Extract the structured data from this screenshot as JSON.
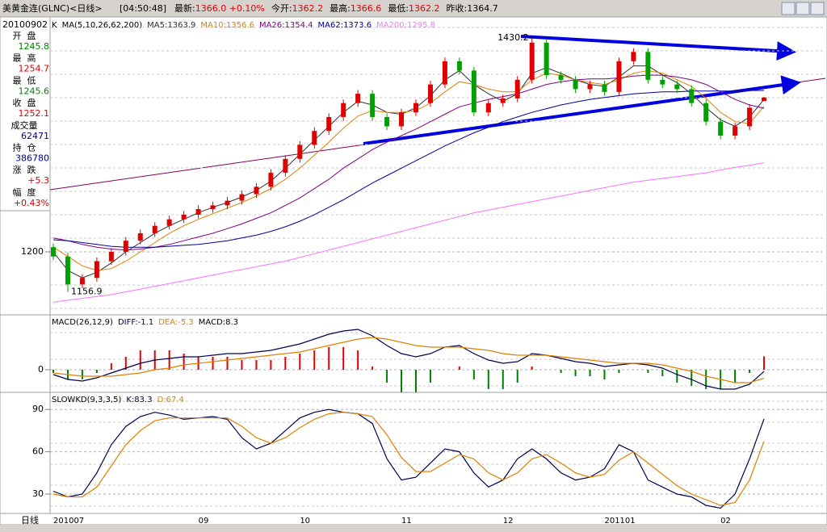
{
  "header": {
    "title": "美黄金连(GLNC)<日线>",
    "time": "[04:50:48]",
    "quotes": [
      {
        "label": "最新:",
        "value": "1366.0 +0.10%",
        "color": "#e00000"
      },
      {
        "label": "今开:",
        "value": "1362.2",
        "color": "#e00000"
      },
      {
        "label": "最高:",
        "value": "1366.6",
        "color": "#e00000"
      },
      {
        "label": "最低:",
        "value": "1362.2",
        "color": "#e00000"
      },
      {
        "label": "昨收:",
        "value": "1364.7",
        "color": "#000000"
      }
    ]
  },
  "info_panel": {
    "date": "20100902",
    "rows": [
      {
        "label": "开  盘",
        "value": "1245.8",
        "color": "#008000"
      },
      {
        "label": "最  高",
        "value": "1254.7",
        "color": "#e00000"
      },
      {
        "label": "最  低",
        "value": "1245.6",
        "color": "#008000"
      },
      {
        "label": "收  盘",
        "value": "1252.1",
        "color": "#e00000"
      },
      {
        "label": "成交量",
        "value": "62471",
        "color": "#000080"
      },
      {
        "label": "持  仓",
        "value": "386780",
        "color": "#000080"
      },
      {
        "label": "涨  跌",
        "value": "+5.3",
        "color": "#e00000"
      },
      {
        "label": "幅  度",
        "value": "+0.43%",
        "color": "#e00000"
      }
    ]
  },
  "chart_data": [
    {
      "type": "candlestick",
      "label": "K",
      "ma_label": "MA(5,10,26,62,200)",
      "period_label": "日线",
      "up_color": "#e00000",
      "down_color": "#00a000",
      "categories": [
        "201007",
        null,
        null,
        null,
        null,
        null,
        null,
        null,
        null,
        null,
        "09",
        null,
        null,
        null,
        null,
        null,
        null,
        "10",
        null,
        null,
        null,
        null,
        null,
        null,
        "11",
        null,
        null,
        null,
        null,
        null,
        null,
        "12",
        null,
        null,
        null,
        null,
        null,
        null,
        "201101",
        null,
        null,
        null,
        null,
        null,
        null,
        null,
        "02",
        null,
        null,
        null
      ],
      "open": [
        1205,
        1195,
        1165,
        1172,
        1190,
        1200,
        1212,
        1220,
        1228,
        1235,
        1240,
        1246,
        1250,
        1255,
        1262,
        1270,
        1285,
        1300,
        1315,
        1330,
        1345,
        1360,
        1370,
        1345,
        1335,
        1350,
        1360,
        1380,
        1405,
        1395,
        1350,
        1360,
        1365,
        1385,
        1425,
        1390,
        1385,
        1375,
        1380,
        1372,
        1405,
        1415,
        1385,
        1380,
        1375,
        1360,
        1340,
        1325,
        1335,
        1362.2
      ],
      "high": [
        1209,
        1199,
        1176,
        1194,
        1204,
        1216,
        1224,
        1232,
        1239,
        1244,
        1250,
        1254,
        1259,
        1266,
        1274,
        1289,
        1304,
        1319,
        1334,
        1349,
        1364,
        1374,
        1374,
        1349,
        1354,
        1364,
        1384,
        1409,
        1409,
        1399,
        1364,
        1369,
        1389,
        1430.2,
        1429,
        1394,
        1389,
        1384,
        1384,
        1409,
        1419,
        1419,
        1389,
        1384,
        1379,
        1364,
        1344,
        1339,
        1359,
        1366.6
      ],
      "low": [
        1191,
        1156.9,
        1161,
        1168,
        1186,
        1196,
        1208,
        1216,
        1224,
        1231,
        1236,
        1242,
        1246,
        1251,
        1258,
        1266,
        1281,
        1296,
        1311,
        1326,
        1341,
        1356,
        1341,
        1331,
        1331,
        1346,
        1356,
        1376,
        1391,
        1346,
        1346,
        1356,
        1361,
        1381,
        1386,
        1381,
        1371,
        1371,
        1368,
        1368,
        1401,
        1381,
        1376,
        1371,
        1356,
        1336,
        1321,
        1321,
        1331,
        1362.2
      ],
      "close": [
        1195,
        1165,
        1172,
        1190,
        1200,
        1212,
        1220,
        1228,
        1235,
        1240,
        1246,
        1250,
        1255,
        1262,
        1270,
        1285,
        1300,
        1315,
        1330,
        1345,
        1360,
        1370,
        1345,
        1335,
        1350,
        1360,
        1380,
        1405,
        1395,
        1350,
        1360,
        1365,
        1385,
        1425,
        1390,
        1385,
        1375,
        1380,
        1372,
        1405,
        1415,
        1385,
        1380,
        1375,
        1360,
        1340,
        1325,
        1335,
        1355,
        1366
      ],
      "series": [
        {
          "name": "MA5:1363.9",
          "color": "#303030",
          "values": [
            1200,
            1180,
            1172,
            1178,
            1188,
            1200,
            1210,
            1220,
            1228,
            1235,
            1242,
            1248,
            1253,
            1259,
            1266,
            1276,
            1290,
            1305,
            1320,
            1335,
            1350,
            1362,
            1358,
            1350,
            1348,
            1355,
            1368,
            1385,
            1395,
            1380,
            1370,
            1362,
            1370,
            1392,
            1398,
            1392,
            1385,
            1380,
            1378,
            1388,
            1400,
            1400,
            1390,
            1382,
            1370,
            1355,
            1342,
            1335,
            1345,
            1363.9
          ]
        },
        {
          "name": "MA10:1356.6",
          "color": "#e08000",
          "values": [
            1205,
            1195,
            1185,
            1180,
            1182,
            1190,
            1200,
            1210,
            1220,
            1228,
            1235,
            1241,
            1247,
            1253,
            1260,
            1268,
            1278,
            1290,
            1304,
            1318,
            1333,
            1346,
            1352,
            1350,
            1350,
            1352,
            1360,
            1372,
            1383,
            1380,
            1375,
            1372,
            1372,
            1385,
            1392,
            1390,
            1385,
            1382,
            1380,
            1385,
            1392,
            1395,
            1392,
            1385,
            1378,
            1365,
            1350,
            1340,
            1338,
            1356.6
          ]
        },
        {
          "name": "MA26:1354.4",
          "color": "#800080",
          "values": [
            1215,
            1212,
            1208,
            1205,
            1203,
            1202,
            1203,
            1205,
            1208,
            1212,
            1216,
            1220,
            1225,
            1230,
            1236,
            1242,
            1250,
            1258,
            1268,
            1278,
            1290,
            1300,
            1310,
            1318,
            1325,
            1332,
            1340,
            1348,
            1356,
            1360,
            1364,
            1367,
            1370,
            1375,
            1380,
            1383,
            1385,
            1386,
            1386,
            1387,
            1389,
            1390,
            1390,
            1388,
            1385,
            1380,
            1372,
            1364,
            1358,
            1354.4
          ]
        },
        {
          "name": "MA62:1373.6",
          "color": "#0000a0",
          "values": [
            1213,
            1212,
            1210,
            1208,
            1206,
            1205,
            1205,
            1205,
            1206,
            1207,
            1208,
            1210,
            1212,
            1215,
            1218,
            1222,
            1227,
            1233,
            1240,
            1248,
            1256,
            1265,
            1274,
            1282,
            1290,
            1298,
            1306,
            1314,
            1321,
            1328,
            1334,
            1340,
            1345,
            1350,
            1354,
            1358,
            1361,
            1364,
            1366,
            1368,
            1370,
            1371,
            1372,
            1372,
            1373,
            1373,
            1373,
            1373,
            1373.5,
            1373.6
          ]
        },
        {
          "name": "MA200:1295.8",
          "color": "#ff70ff",
          "values": [
            1146,
            1148,
            1150,
            1152,
            1154,
            1157,
            1160,
            1163,
            1166,
            1169,
            1172,
            1175,
            1178,
            1181,
            1184,
            1187,
            1190,
            1194,
            1198,
            1202,
            1206,
            1210,
            1214,
            1218,
            1222,
            1226,
            1230,
            1234,
            1238,
            1242,
            1245,
            1248,
            1251,
            1254,
            1257,
            1260,
            1263,
            1266,
            1269,
            1272,
            1275,
            1277,
            1279,
            1281,
            1283,
            1285,
            1288,
            1291,
            1293,
            1295.8
          ]
        }
      ],
      "ylim": [
        1134,
        1450
      ],
      "yticks": [
        1200
      ]
    },
    {
      "type": "macd",
      "label": "MACD(26,12,9)",
      "up_color": "#e00000",
      "down_color": "#008000",
      "series": [
        {
          "name": "DIFF:-1.1",
          "color": "#000050",
          "values": [
            -3,
            -6,
            -7,
            -5,
            -2,
            1,
            4,
            6,
            7,
            8,
            8,
            9,
            10,
            10,
            11,
            12,
            14,
            16,
            19,
            22,
            24,
            25,
            21,
            15,
            10,
            8,
            10,
            14,
            15,
            10,
            6,
            4,
            5,
            10,
            9,
            7,
            5,
            4,
            2,
            3,
            4,
            3,
            1,
            -3,
            -6,
            -10,
            -12,
            -12,
            -9,
            -1.1
          ]
        },
        {
          "name": "DEA:-5.3",
          "color": "#e08000",
          "values": [
            -2,
            -3,
            -4,
            -4,
            -4,
            -3,
            -2,
            0,
            1,
            3,
            4,
            5,
            6,
            7,
            8,
            9,
            10,
            11,
            13,
            15,
            17,
            19,
            20,
            19,
            17,
            15,
            14,
            14,
            14,
            13,
            12,
            10,
            9,
            9,
            9,
            8,
            7,
            6,
            5,
            4,
            4,
            4,
            3,
            1,
            -1,
            -4,
            -6,
            -8,
            -8,
            -5.3
          ]
        }
      ],
      "bars": {
        "name": "MACD:8.3",
        "values": [
          -2,
          -6,
          -6,
          -2,
          4,
          8,
          12,
          12,
          12,
          10,
          8,
          8,
          8,
          6,
          6,
          6,
          8,
          10,
          12,
          14,
          14,
          12,
          2,
          -8,
          -14,
          -14,
          -8,
          0,
          2,
          -6,
          -12,
          -12,
          -8,
          2,
          0,
          -2,
          -4,
          -4,
          -6,
          -2,
          0,
          -2,
          -4,
          -8,
          -10,
          -12,
          -12,
          -8,
          -2,
          8.3
        ]
      },
      "ylim": [
        -13,
        33
      ],
      "yticks": [
        0
      ]
    },
    {
      "type": "kd",
      "label": "SLOWKD(9,3,3,5)",
      "series": [
        {
          "name": "K:83.3",
          "color": "#000050",
          "values": [
            32,
            28,
            30,
            45,
            65,
            78,
            85,
            88,
            86,
            83,
            84,
            85,
            83,
            70,
            62,
            66,
            75,
            84,
            88,
            90,
            88,
            87,
            80,
            55,
            40,
            42,
            52,
            62,
            60,
            45,
            35,
            40,
            55,
            62,
            55,
            45,
            40,
            42,
            48,
            65,
            60,
            40,
            35,
            30,
            28,
            22,
            20,
            30,
            55,
            83.3
          ]
        },
        {
          "name": "D:67.4",
          "color": "#e08000",
          "values": [
            30,
            28,
            28,
            35,
            50,
            65,
            75,
            82,
            84,
            84,
            84,
            84,
            84,
            78,
            70,
            66,
            70,
            77,
            83,
            87,
            88,
            87,
            85,
            72,
            56,
            46,
            46,
            52,
            58,
            55,
            45,
            40,
            45,
            55,
            58,
            52,
            45,
            42,
            44,
            54,
            60,
            52,
            44,
            36,
            30,
            26,
            22,
            24,
            40,
            67.4
          ]
        }
      ],
      "ylim": [
        18,
        101
      ],
      "yticks": [
        30,
        60,
        90
      ]
    }
  ]
}
